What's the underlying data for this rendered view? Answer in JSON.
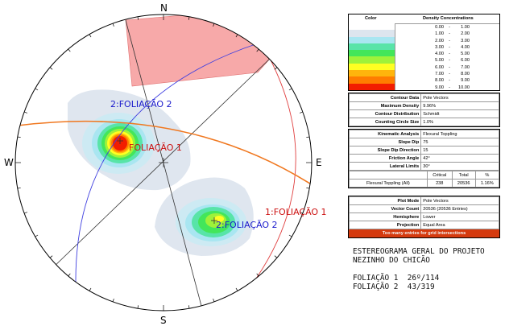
{
  "stereonet": {
    "compass": {
      "north": "N",
      "south": "S",
      "east": "E",
      "west": "W"
    },
    "labels": {
      "plane_2": "2:FOLIAÇÃO 2",
      "pole_2": "2:FOLIAÇÃO 2",
      "pole_1": "FOLIAÇÃO 1",
      "plane_1": "1:FOLIAÇÃO 1"
    }
  },
  "density_legend": {
    "header_color": "Color",
    "header_density": "Density Concentrations",
    "colors": [
      "#ffffff",
      "#dde5ee",
      "#a9e6f1",
      "#58e4a8",
      "#43e65a",
      "#9ff23a",
      "#ffff22",
      "#ffb50c",
      "#ff7d00",
      "#f21d00"
    ],
    "ranges": [
      [
        "0.00",
        "-",
        "1.00"
      ],
      [
        "1.00",
        "-",
        "2.00"
      ],
      [
        "2.00",
        "-",
        "3.00"
      ],
      [
        "3.00",
        "-",
        "4.00"
      ],
      [
        "4.00",
        "-",
        "5.00"
      ],
      [
        "5.00",
        "-",
        "6.00"
      ],
      [
        "6.00",
        "-",
        "7.00"
      ],
      [
        "7.00",
        "-",
        "8.00"
      ],
      [
        "8.00",
        "-",
        "9.00"
      ],
      [
        "9.00",
        "-",
        "10.00"
      ]
    ]
  },
  "contour_info": {
    "rows": [
      [
        "Contour Data",
        "Pole Vectors"
      ],
      [
        "Maximum Density",
        "9.96%"
      ],
      [
        "Contour Distribution",
        "Schmidt"
      ],
      [
        "Counting Circle Size",
        "1.0%"
      ]
    ]
  },
  "kinematic": {
    "rows": [
      [
        "Kinematic Analysis",
        "Flexural Toppling"
      ],
      [
        "Slope Dip",
        "75"
      ],
      [
        "Slope Dip Direction",
        "15"
      ],
      [
        "Friction Angle",
        "42°"
      ],
      [
        "Lateral Limits",
        "30°"
      ]
    ],
    "result_headers": [
      "Critical",
      "Total",
      "%"
    ],
    "result_row": [
      "Flexural Toppling (All)",
      "238",
      "20536",
      "1.16%"
    ]
  },
  "plot_info": {
    "rows": [
      [
        "Plot Mode",
        "Pole Vectors"
      ],
      [
        "Vector Count",
        "20536 (20536 Entries)"
      ],
      [
        "Hemisphere",
        "Lower"
      ],
      [
        "Projection",
        "Equal Area"
      ]
    ],
    "warning": "Too many entries for grid intersections"
  },
  "notes": {
    "title_line1": "ESTEREOGRAMA GERAL DO PROJETO",
    "title_line2": "NEZINHO DO CHICÃO",
    "foliation_1": "FOLIAÇÃO 1  26º/114",
    "foliation_2": "FOLIAÇÃO 2  43/319"
  }
}
